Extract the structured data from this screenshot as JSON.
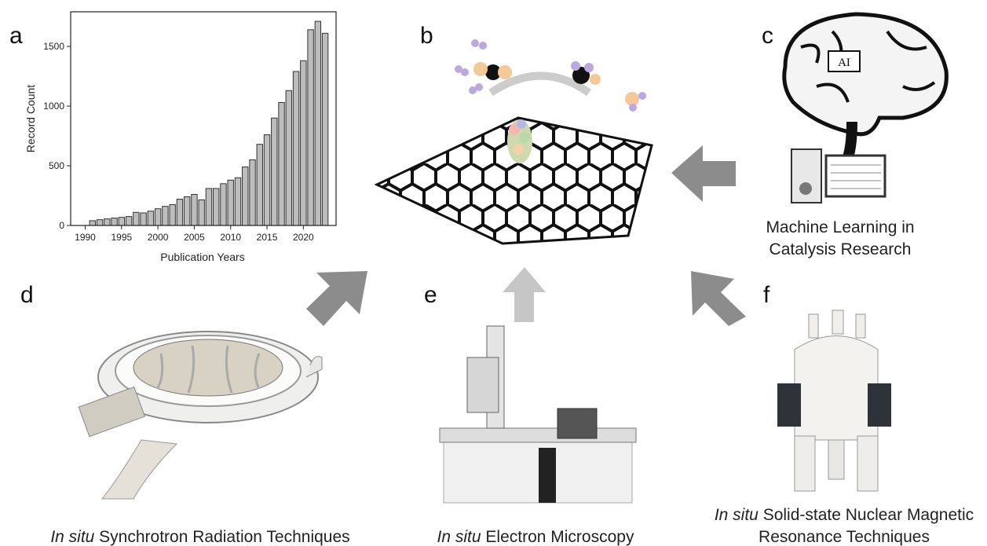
{
  "chart_data": {
    "type": "bar",
    "x_label": "Publication Years",
    "y_label": "Record Count",
    "x": [
      1991,
      1992,
      1993,
      1994,
      1995,
      1996,
      1997,
      1998,
      1999,
      2000,
      2001,
      2002,
      2003,
      2004,
      2005,
      2006,
      2007,
      2008,
      2009,
      2010,
      2011,
      2012,
      2013,
      2014,
      2015,
      2016,
      2017,
      2018,
      2019,
      2020,
      2021,
      2022,
      2023
    ],
    "values": [
      40,
      48,
      55,
      62,
      68,
      75,
      110,
      105,
      120,
      140,
      160,
      175,
      220,
      240,
      260,
      215,
      310,
      310,
      350,
      380,
      400,
      490,
      550,
      680,
      760,
      900,
      1030,
      1130,
      1290,
      1380,
      1640,
      1710,
      1610
    ],
    "color": "#bdbdbd",
    "xlim": [
      1988,
      2024.5
    ],
    "xticks": [
      1990,
      1995,
      2000,
      2005,
      2010,
      2015,
      2020
    ],
    "ylim": [
      0,
      1790
    ],
    "yticks": [
      0,
      500,
      1000,
      1500
    ]
  },
  "panels": [
    {
      "letter": "a"
    },
    {
      "letter": "b"
    },
    {
      "letter": "c",
      "caption": [
        "Machine Learning in",
        "Catalysis Research"
      ],
      "brain_label": "AI"
    },
    {
      "letter": "d",
      "caption_italic": "In situ",
      "caption": " Synchrotron Radiation Techniques"
    },
    {
      "letter": "e",
      "caption_italic": "In situ",
      "caption": " Electron Microscopy"
    },
    {
      "letter": "f",
      "caption_italic": "In situ",
      "caption": [
        " Solid-state Nuclear Magnetic",
        "Resonance Techniques"
      ]
    }
  ]
}
